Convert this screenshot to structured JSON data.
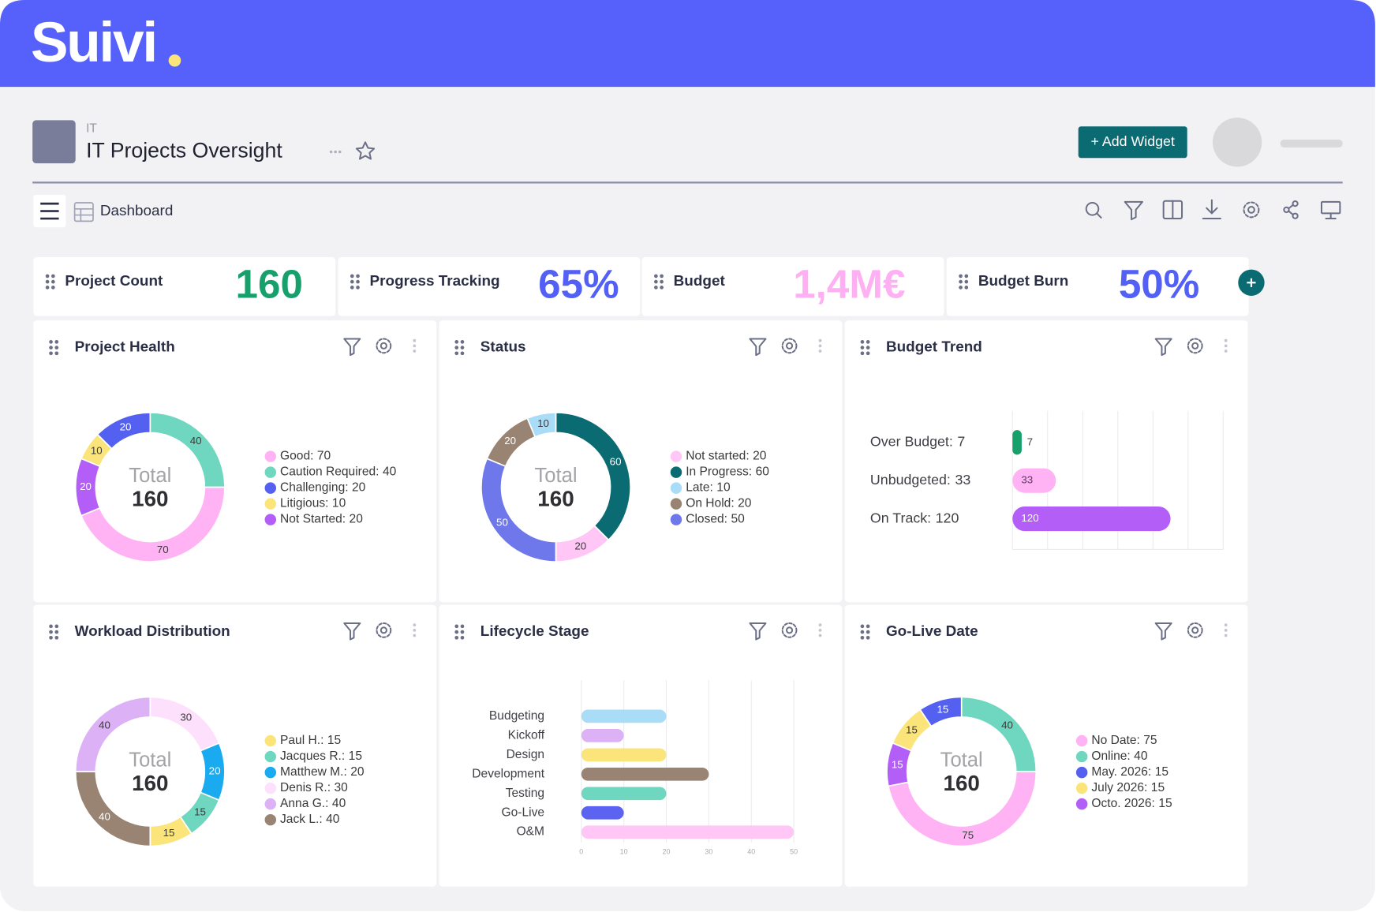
{
  "header": {
    "brand": "Suivi"
  },
  "page": {
    "breadcrumb": "IT",
    "title": "IT Projects Oversight",
    "add_widget": "+ Add Widget",
    "view": "Dashboard"
  },
  "kpis": [
    {
      "label": "Project Count",
      "value": "160",
      "color": "#17a06b"
    },
    {
      "label": "Progress Tracking",
      "value": "65%",
      "color": "#5360f5"
    },
    {
      "label": "Budget",
      "value": "1,4M€",
      "color": "#ffb0f3"
    },
    {
      "label": "Budget Burn",
      "value": "50%",
      "color": "#5360f5"
    }
  ],
  "chart_data": [
    {
      "type": "donut",
      "title": "Project Health",
      "center_label": "Total",
      "center_value": 160,
      "categories": [
        "Good:",
        "Caution Required:",
        "Challenging:",
        "Litigious:",
        "Not Started:"
      ],
      "values": [
        70,
        40,
        20,
        10,
        20
      ],
      "colors": [
        "#ffb3f5",
        "#6fd6bf",
        "#5360f0",
        "#fbe57a",
        "#b25ef7"
      ]
    },
    {
      "type": "donut",
      "title": "Status",
      "center_label": "Total",
      "center_value": 160,
      "categories": [
        "Not started:",
        "In Progress:",
        "Late:",
        "On Hold:",
        "Closed:"
      ],
      "values": [
        20,
        60,
        10,
        20,
        50
      ],
      "colors": [
        "#ffc6f6",
        "#0b6b73",
        "#a8dcf7",
        "#998473",
        "#6f78ea"
      ]
    },
    {
      "type": "bar",
      "orientation": "horizontal",
      "title": "Budget Trend",
      "categories": [
        "Over Budget:",
        "Unbudgeted:",
        "On Track:"
      ],
      "values": [
        7,
        33,
        120
      ],
      "colors": [
        "#17a06b",
        "#ffb3f5",
        "#b25ef7"
      ],
      "xlim": [
        0,
        160
      ],
      "grid": true
    },
    {
      "type": "donut",
      "title": "Workload Distribution",
      "center_label": "Total",
      "center_value": 160,
      "categories": [
        "Paul H.:",
        "Jacques R.:",
        "Matthew M.:",
        "Denis R.:",
        "Anna G.:",
        "Jack L.:"
      ],
      "values": [
        15,
        15,
        20,
        30,
        40,
        40
      ],
      "colors": [
        "#fbe57a",
        "#6fd6bf",
        "#1aaaf0",
        "#fde0fb",
        "#dcb1f5",
        "#998473"
      ]
    },
    {
      "type": "bar",
      "orientation": "horizontal",
      "title": "Lifecycle Stage",
      "categories": [
        "Budgeting",
        "Kickoff",
        "Design",
        "Development",
        "Testing",
        "Go-Live",
        "O&M"
      ],
      "values": [
        20,
        10,
        20,
        30,
        20,
        10,
        50
      ],
      "colors": [
        "#a8dcf7",
        "#dcb1f5",
        "#fbe57a",
        "#998473",
        "#6fd6bf",
        "#5b63f0",
        "#ffc6f6"
      ],
      "xlim": [
        0,
        50
      ],
      "xticks": [
        0,
        10,
        20,
        30,
        40,
        50
      ],
      "grid": true
    },
    {
      "type": "donut",
      "title": "Go-Live Date",
      "center_label": "Total",
      "center_value": 160,
      "categories": [
        "No Date:",
        "Online:",
        "May. 2026:",
        "July 2026:",
        "Octo. 2026:"
      ],
      "values": [
        75,
        40,
        15,
        15,
        15
      ],
      "colors": [
        "#ffb3f5",
        "#6fd6bf",
        "#5360f0",
        "#fbe57a",
        "#b25ef7"
      ]
    }
  ]
}
